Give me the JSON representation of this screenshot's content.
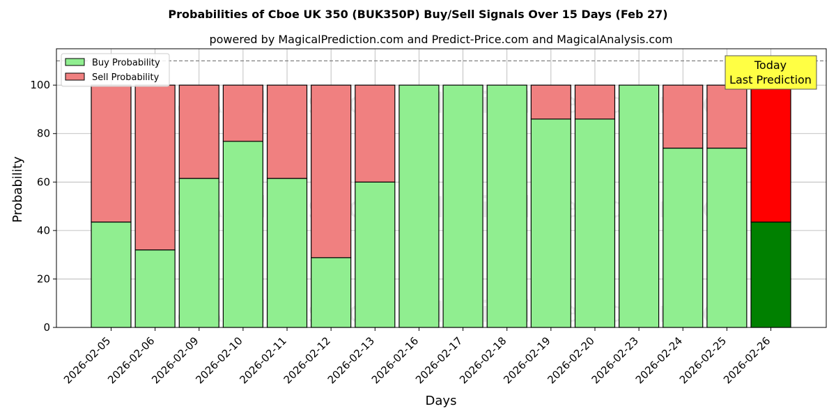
{
  "chart_data": {
    "type": "bar",
    "stacked": true,
    "title": "Probabilities of Cboe UK 350 (BUK350P) Buy/Sell Signals Over 15 Days (Feb 27)",
    "subtitle": "powered by MagicalPrediction.com and Predict-Price.com and MagicalAnalysis.com",
    "xlabel": "Days",
    "ylabel": "Probability",
    "ylim": [
      0,
      115
    ],
    "yticks": [
      0,
      20,
      40,
      60,
      80,
      100
    ],
    "grid": true,
    "reference_line": 110,
    "legend_position": "top-left",
    "categories": [
      "2026-02-05",
      "2026-02-06",
      "2026-02-09",
      "2026-02-10",
      "2026-02-11",
      "2026-02-12",
      "2026-02-13",
      "2026-02-16",
      "2026-02-17",
      "2026-02-18",
      "2026-02-19",
      "2026-02-20",
      "2026-02-23",
      "2026-02-24",
      "2026-02-25",
      "2026-02-26"
    ],
    "series": [
      {
        "name": "Buy Probability",
        "color": "#90ee90",
        "highlight_color": "#008000",
        "values": [
          43.5,
          32,
          61.5,
          76.8,
          61.5,
          28.8,
          60,
          100,
          100,
          100,
          86,
          86,
          100,
          74,
          74,
          43.5
        ]
      },
      {
        "name": "Sell Probability",
        "color": "#f08080",
        "highlight_color": "#ff0000",
        "values": [
          56.5,
          68,
          38.5,
          23.2,
          38.5,
          71.2,
          40,
          0,
          0,
          0,
          14,
          14,
          0,
          26,
          26,
          56.5
        ]
      }
    ],
    "annotation": {
      "lines": [
        "Today",
        "Last Prediction"
      ],
      "bg_color": "#ffff44"
    },
    "watermarks": [
      "MagicalAnalysis.com",
      "MagicalPrediction.com"
    ]
  }
}
